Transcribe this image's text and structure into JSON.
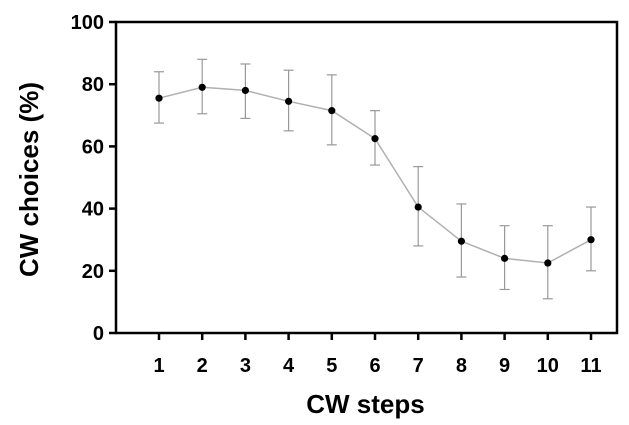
{
  "chart_data": {
    "type": "line",
    "title": "",
    "xlabel": "CW steps",
    "ylabel": "CW choices (%)",
    "x": [
      1,
      2,
      3,
      4,
      5,
      6,
      7,
      8,
      9,
      10,
      11
    ],
    "series": [
      {
        "values": [
          75.5,
          79,
          78,
          74.5,
          71.5,
          62.5,
          40.5,
          29.5,
          24,
          22.5,
          30
        ],
        "error_low": [
          67.5,
          70.5,
          69,
          65,
          60.5,
          54,
          28,
          18,
          14,
          11,
          20
        ],
        "error_high": [
          84,
          88,
          86.5,
          84.5,
          83,
          71.5,
          53.5,
          41.5,
          34.5,
          34.5,
          40.5
        ],
        "line_color": "#b0b0b0",
        "marker_color": "#000000",
        "error_color": "#999999"
      }
    ],
    "ylim": [
      0,
      100
    ],
    "yticks": [
      0,
      20,
      40,
      60,
      80,
      100
    ],
    "xticks": [
      1,
      2,
      3,
      4,
      5,
      6,
      7,
      8,
      9,
      10,
      11
    ],
    "grid": false,
    "legend": "none"
  }
}
